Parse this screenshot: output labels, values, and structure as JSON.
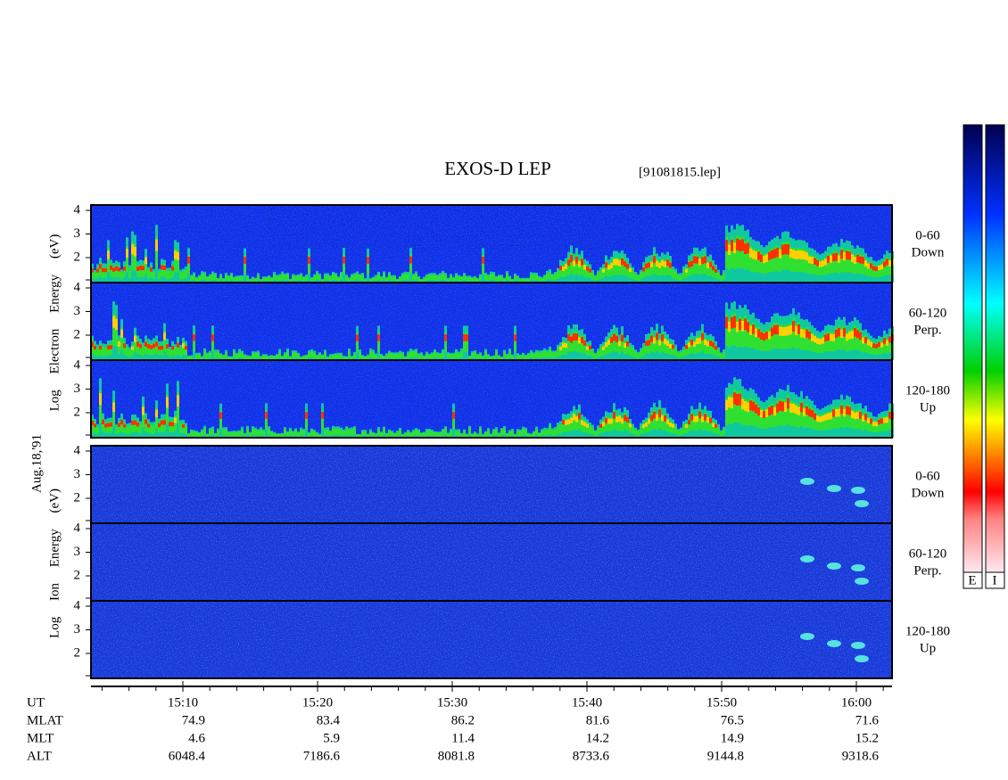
{
  "title": "EXOS-D LEP",
  "file": "[91081815.lep]",
  "date": "Aug.18,'91",
  "electron": {
    "axis_label": "Log Electron Energy (eV)",
    "panels": [
      {
        "labels": [
          "0-60",
          "Down"
        ],
        "yticks": [
          "4",
          "3",
          "2"
        ]
      },
      {
        "labels": [
          "60-120",
          "Perp."
        ],
        "yticks": [
          "4",
          "3",
          "2"
        ]
      },
      {
        "labels": [
          "120-180",
          "Up"
        ],
        "yticks": [
          "4",
          "3",
          "2"
        ]
      }
    ]
  },
  "ion": {
    "axis_label": "Log Ion Energy (eV)",
    "panels": [
      {
        "labels": [
          "0-60",
          "Down"
        ],
        "yticks": [
          "4",
          "3",
          "2"
        ]
      },
      {
        "labels": [
          "60-120",
          "Perp."
        ],
        "yticks": [
          "4",
          "3",
          "2"
        ]
      },
      {
        "labels": [
          "120-180",
          "Up"
        ],
        "yticks": [
          "4",
          "3",
          "2"
        ]
      }
    ]
  },
  "rows": [
    {
      "label": "UT",
      "values": [
        "15:10",
        "15:20",
        "15:30",
        "15:40",
        "15:50",
        "16:00"
      ]
    },
    {
      "label": "MLAT",
      "values": [
        "74.9",
        "83.4",
        "86.2",
        "81.6",
        "76.5",
        "71.6"
      ]
    },
    {
      "label": "MLT",
      "values": [
        "4.6",
        "5.9",
        "11.4",
        "14.2",
        "14.9",
        "15.2"
      ]
    },
    {
      "label": "ALT",
      "values": [
        "6048.4",
        "7186.6",
        "8081.8",
        "8733.6",
        "9144.8",
        "9318.6"
      ]
    }
  ],
  "colorbar_labels": [
    "E",
    "I"
  ]
}
